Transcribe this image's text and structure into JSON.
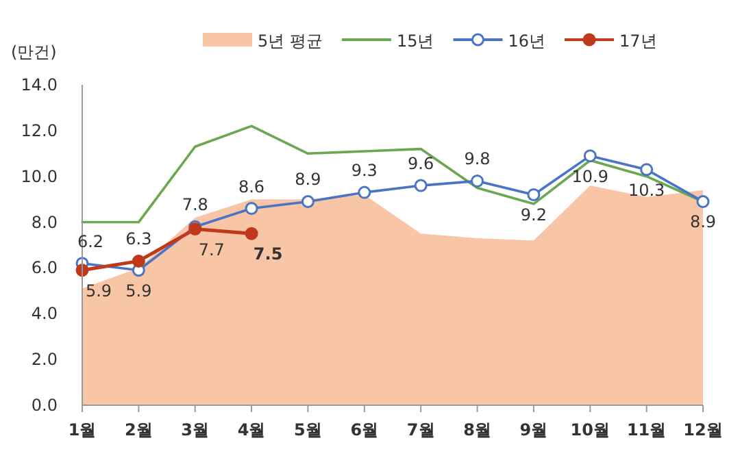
{
  "chart_data": {
    "type": "line",
    "ylabel": "(만건)",
    "categories": [
      "1월",
      "2월",
      "3월",
      "4월",
      "5월",
      "6월",
      "7월",
      "8월",
      "9월",
      "10월",
      "11월",
      "12월"
    ],
    "series": [
      {
        "name": "5년 평균",
        "type": "area",
        "color": "#f8c6a6",
        "values": [
          5.1,
          6.0,
          8.2,
          9.0,
          9.0,
          9.2,
          7.5,
          7.3,
          7.2,
          9.6,
          9.1,
          9.4
        ]
      },
      {
        "name": "15년",
        "color": "#6aa84f",
        "marker": "none",
        "values": [
          8.0,
          8.0,
          11.3,
          12.2,
          11.0,
          11.1,
          11.2,
          9.5,
          8.8,
          10.7,
          10.0,
          8.9
        ]
      },
      {
        "name": "16년",
        "color": "#4a74c4",
        "marker": "circle",
        "values": [
          6.2,
          5.9,
          7.8,
          8.6,
          8.9,
          9.3,
          9.6,
          9.8,
          9.2,
          10.9,
          10.3,
          8.9
        ],
        "value_labels": [
          "6.2",
          "5.9",
          "7.8",
          "8.6",
          "8.9",
          "9.3",
          "9.6",
          "9.8",
          "9.2",
          "10.9",
          "10.3",
          "8.9"
        ]
      },
      {
        "name": "17년",
        "color": "#c0391b",
        "marker": "circle",
        "values": [
          5.9,
          6.3,
          7.7,
          7.5,
          null,
          null,
          null,
          null,
          null,
          null,
          null,
          null
        ],
        "value_labels": [
          "5.9",
          "6.3",
          "7.7",
          "7.5",
          null,
          null,
          null,
          null,
          null,
          null,
          null,
          null
        ]
      }
    ],
    "ylim": [
      0,
      14
    ],
    "yticks": [
      {
        "value": 0,
        "label": "0.0"
      },
      {
        "value": 2,
        "label": "2.0"
      },
      {
        "value": 4,
        "label": "4.0"
      },
      {
        "value": 6,
        "label": "6.0"
      },
      {
        "value": 8,
        "label": "8.0"
      },
      {
        "value": 10,
        "label": "10.0"
      },
      {
        "value": 12,
        "label": "12.0"
      },
      {
        "value": 14,
        "label": "14.0"
      }
    ],
    "grid": false,
    "legend": "top"
  }
}
